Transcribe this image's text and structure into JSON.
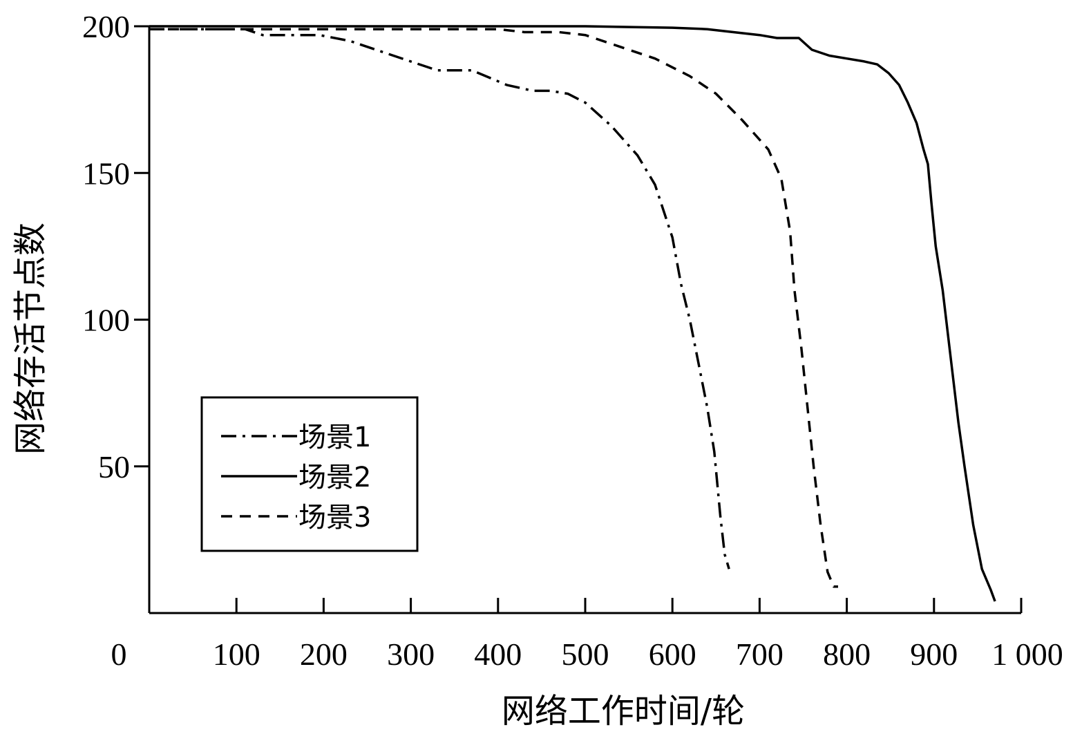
{
  "chart_data": {
    "type": "line",
    "xlabel": "网络工作时间/轮",
    "ylabel": "网络存活节点数",
    "xlim": [
      0,
      1000
    ],
    "ylim": [
      0,
      200
    ],
    "x_ticks": [
      0,
      100,
      200,
      300,
      400,
      500,
      600,
      700,
      800,
      900,
      1000
    ],
    "x_tick_labels": [
      "0",
      "100",
      "200",
      "300",
      "400",
      "500",
      "600",
      "700",
      "800",
      "900",
      "1 000"
    ],
    "y_ticks": [
      50,
      100,
      150,
      200
    ],
    "y_tick_labels": [
      "50",
      "100",
      "150",
      "200"
    ],
    "grid": false,
    "legend_position": "bottom-left",
    "series": [
      {
        "name": "场景1",
        "style": "dashdot",
        "color": "#000000",
        "points": [
          [
            0,
            199
          ],
          [
            50,
            199
          ],
          [
            110,
            199
          ],
          [
            130,
            197
          ],
          [
            195,
            197
          ],
          [
            230,
            195
          ],
          [
            280,
            190
          ],
          [
            320,
            186
          ],
          [
            330,
            185
          ],
          [
            370,
            185
          ],
          [
            410,
            180
          ],
          [
            440,
            178
          ],
          [
            460,
            178
          ],
          [
            480,
            177
          ],
          [
            500,
            174
          ],
          [
            530,
            166
          ],
          [
            560,
            156
          ],
          [
            580,
            146
          ],
          [
            600,
            128
          ],
          [
            610,
            112
          ],
          [
            620,
            100
          ],
          [
            630,
            85
          ],
          [
            640,
            70
          ],
          [
            648,
            55
          ],
          [
            655,
            33
          ],
          [
            660,
            20
          ],
          [
            665,
            15
          ]
        ]
      },
      {
        "name": "场景2",
        "style": "solid",
        "color": "#000000",
        "points": [
          [
            0,
            200
          ],
          [
            300,
            200
          ],
          [
            500,
            200
          ],
          [
            600,
            199.5
          ],
          [
            640,
            199
          ],
          [
            670,
            198
          ],
          [
            700,
            197
          ],
          [
            720,
            196
          ],
          [
            745,
            196
          ],
          [
            760,
            192
          ],
          [
            780,
            190
          ],
          [
            800,
            189
          ],
          [
            820,
            188
          ],
          [
            835,
            187
          ],
          [
            848,
            184
          ],
          [
            860,
            180
          ],
          [
            870,
            174
          ],
          [
            880,
            167
          ],
          [
            888,
            158
          ],
          [
            893,
            153
          ],
          [
            897,
            140
          ],
          [
            902,
            125
          ],
          [
            910,
            110
          ],
          [
            920,
            85
          ],
          [
            928,
            65
          ],
          [
            935,
            50
          ],
          [
            945,
            30
          ],
          [
            955,
            15
          ],
          [
            965,
            8
          ],
          [
            970,
            4
          ]
        ]
      },
      {
        "name": "场景3",
        "style": "dashed",
        "color": "#000000",
        "points": [
          [
            0,
            199
          ],
          [
            400,
            199
          ],
          [
            430,
            198
          ],
          [
            470,
            198
          ],
          [
            500,
            197
          ],
          [
            540,
            193
          ],
          [
            580,
            189
          ],
          [
            620,
            183
          ],
          [
            650,
            177
          ],
          [
            680,
            168
          ],
          [
            710,
            158
          ],
          [
            725,
            148
          ],
          [
            735,
            130
          ],
          [
            740,
            110
          ],
          [
            748,
            90
          ],
          [
            755,
            70
          ],
          [
            762,
            50
          ],
          [
            770,
            30
          ],
          [
            778,
            14
          ],
          [
            785,
            9
          ],
          [
            790,
            9
          ]
        ]
      }
    ]
  }
}
